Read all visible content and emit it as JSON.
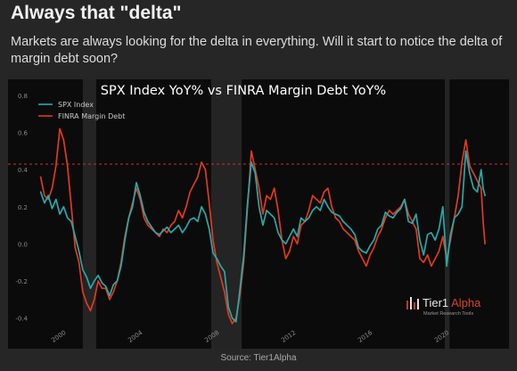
{
  "header": {
    "title": "Always that \"delta\"",
    "subtitle": "Markets are always looking for the delta in everything. Will it start to notice the delta of margin debt soon?"
  },
  "chart_data": {
    "type": "line",
    "title": "SPX Index YoY% vs FINRA Margin Debt YoY%",
    "xlabel": "",
    "ylabel": "",
    "xlim": [
      1998.6,
      2022.8
    ],
    "ylim": [
      -0.45,
      0.8
    ],
    "x_ticks": [
      "2000",
      "2004",
      "2008",
      "2012",
      "2016",
      "2020"
    ],
    "y_ticks": [
      "0.8",
      "0.6",
      "0.4",
      "0.2",
      "0.0",
      "-0.2",
      "-0.4"
    ],
    "grid": false,
    "legend_position": "top-left",
    "reference_line": 0.43,
    "recessions": [
      [
        2001.2,
        2001.9
      ],
      [
        2007.9,
        2009.5
      ],
      [
        2020.1,
        2020.35
      ]
    ],
    "series": [
      {
        "name": "SPX Index",
        "color": "#2aa8a8",
        "points": [
          [
            1999.0,
            0.28
          ],
          [
            1999.2,
            0.22
          ],
          [
            1999.4,
            0.26
          ],
          [
            1999.6,
            0.19
          ],
          [
            1999.8,
            0.24
          ],
          [
            2000.0,
            0.16
          ],
          [
            2000.2,
            0.2
          ],
          [
            2000.4,
            0.14
          ],
          [
            2000.6,
            0.12
          ],
          [
            2000.8,
            0.04
          ],
          [
            2001.0,
            -0.04
          ],
          [
            2001.2,
            -0.14
          ],
          [
            2001.4,
            -0.18
          ],
          [
            2001.6,
            -0.24
          ],
          [
            2001.8,
            -0.2
          ],
          [
            2002.0,
            -0.17
          ],
          [
            2002.2,
            -0.21
          ],
          [
            2002.4,
            -0.23
          ],
          [
            2002.6,
            -0.28
          ],
          [
            2002.8,
            -0.22
          ],
          [
            2003.0,
            -0.2
          ],
          [
            2003.2,
            -0.12
          ],
          [
            2003.4,
            0.02
          ],
          [
            2003.6,
            0.14
          ],
          [
            2003.8,
            0.2
          ],
          [
            2004.0,
            0.33
          ],
          [
            2004.2,
            0.26
          ],
          [
            2004.4,
            0.17
          ],
          [
            2004.6,
            0.12
          ],
          [
            2004.8,
            0.09
          ],
          [
            2005.0,
            0.06
          ],
          [
            2005.2,
            0.05
          ],
          [
            2005.4,
            0.07
          ],
          [
            2005.6,
            0.09
          ],
          [
            2005.8,
            0.06
          ],
          [
            2006.0,
            0.08
          ],
          [
            2006.2,
            0.1
          ],
          [
            2006.4,
            0.06
          ],
          [
            2006.6,
            0.09
          ],
          [
            2006.8,
            0.13
          ],
          [
            2007.0,
            0.14
          ],
          [
            2007.2,
            0.12
          ],
          [
            2007.4,
            0.2
          ],
          [
            2007.6,
            0.16
          ],
          [
            2007.8,
            0.08
          ],
          [
            2008.0,
            -0.05
          ],
          [
            2008.2,
            -0.08
          ],
          [
            2008.4,
            -0.12
          ],
          [
            2008.6,
            -0.15
          ],
          [
            2008.8,
            -0.34
          ],
          [
            2009.0,
            -0.4
          ],
          [
            2009.2,
            -0.42
          ],
          [
            2009.4,
            -0.25
          ],
          [
            2009.6,
            -0.06
          ],
          [
            2009.8,
            0.22
          ],
          [
            2010.0,
            0.44
          ],
          [
            2010.2,
            0.38
          ],
          [
            2010.4,
            0.2
          ],
          [
            2010.6,
            0.1
          ],
          [
            2010.8,
            0.18
          ],
          [
            2011.0,
            0.16
          ],
          [
            2011.2,
            0.14
          ],
          [
            2011.4,
            0.06
          ],
          [
            2011.6,
            0.02
          ],
          [
            2011.8,
            0.0
          ],
          [
            2012.0,
            0.04
          ],
          [
            2012.2,
            0.08
          ],
          [
            2012.4,
            0.04
          ],
          [
            2012.6,
            0.14
          ],
          [
            2012.8,
            0.12
          ],
          [
            2013.0,
            0.14
          ],
          [
            2013.2,
            0.18
          ],
          [
            2013.4,
            0.2
          ],
          [
            2013.6,
            0.18
          ],
          [
            2013.8,
            0.24
          ],
          [
            2014.0,
            0.2
          ],
          [
            2014.2,
            0.17
          ],
          [
            2014.4,
            0.16
          ],
          [
            2014.6,
            0.15
          ],
          [
            2014.8,
            0.12
          ],
          [
            2015.0,
            0.1
          ],
          [
            2015.2,
            0.08
          ],
          [
            2015.4,
            0.05
          ],
          [
            2015.6,
            -0.02
          ],
          [
            2015.8,
            -0.04
          ],
          [
            2016.0,
            -0.05
          ],
          [
            2016.2,
            -0.01
          ],
          [
            2016.4,
            0.02
          ],
          [
            2016.6,
            0.08
          ],
          [
            2016.8,
            0.1
          ],
          [
            2017.0,
            0.17
          ],
          [
            2017.2,
            0.15
          ],
          [
            2017.4,
            0.14
          ],
          [
            2017.6,
            0.17
          ],
          [
            2017.8,
            0.19
          ],
          [
            2018.0,
            0.24
          ],
          [
            2018.2,
            0.12
          ],
          [
            2018.4,
            0.11
          ],
          [
            2018.6,
            0.16
          ],
          [
            2018.8,
            0.02
          ],
          [
            2019.0,
            -0.06
          ],
          [
            2019.2,
            0.05
          ],
          [
            2019.4,
            0.06
          ],
          [
            2019.6,
            0.02
          ],
          [
            2019.8,
            0.08
          ],
          [
            2020.0,
            0.2
          ],
          [
            2020.2,
            -0.12
          ],
          [
            2020.4,
            0.05
          ],
          [
            2020.6,
            0.14
          ],
          [
            2020.8,
            0.16
          ],
          [
            2021.0,
            0.2
          ],
          [
            2021.2,
            0.5
          ],
          [
            2021.4,
            0.38
          ],
          [
            2021.6,
            0.3
          ],
          [
            2021.8,
            0.28
          ],
          [
            2022.0,
            0.4
          ],
          [
            2022.1,
            0.3
          ],
          [
            2022.2,
            0.26
          ]
        ]
      },
      {
        "name": "FINRA Margin Debt",
        "color": "#e03a1e",
        "points": [
          [
            1999.0,
            0.36
          ],
          [
            1999.2,
            0.26
          ],
          [
            1999.4,
            0.24
          ],
          [
            1999.6,
            0.3
          ],
          [
            1999.8,
            0.42
          ],
          [
            2000.0,
            0.62
          ],
          [
            2000.2,
            0.56
          ],
          [
            2000.4,
            0.42
          ],
          [
            2000.6,
            0.2
          ],
          [
            2000.8,
            -0.02
          ],
          [
            2001.0,
            -0.1
          ],
          [
            2001.2,
            -0.26
          ],
          [
            2001.4,
            -0.32
          ],
          [
            2001.6,
            -0.36
          ],
          [
            2001.8,
            -0.3
          ],
          [
            2002.0,
            -0.2
          ],
          [
            2002.2,
            -0.24
          ],
          [
            2002.4,
            -0.24
          ],
          [
            2002.6,
            -0.3
          ],
          [
            2002.8,
            -0.26
          ],
          [
            2003.0,
            -0.2
          ],
          [
            2003.2,
            -0.1
          ],
          [
            2003.4,
            0.04
          ],
          [
            2003.6,
            0.14
          ],
          [
            2003.8,
            0.22
          ],
          [
            2004.0,
            0.3
          ],
          [
            2004.2,
            0.24
          ],
          [
            2004.4,
            0.14
          ],
          [
            2004.6,
            0.1
          ],
          [
            2004.8,
            0.08
          ],
          [
            2005.0,
            0.06
          ],
          [
            2005.2,
            0.04
          ],
          [
            2005.4,
            0.08
          ],
          [
            2005.6,
            0.06
          ],
          [
            2005.8,
            0.1
          ],
          [
            2006.0,
            0.12
          ],
          [
            2006.2,
            0.18
          ],
          [
            2006.4,
            0.14
          ],
          [
            2006.6,
            0.2
          ],
          [
            2006.8,
            0.28
          ],
          [
            2007.0,
            0.32
          ],
          [
            2007.2,
            0.36
          ],
          [
            2007.4,
            0.44
          ],
          [
            2007.6,
            0.4
          ],
          [
            2007.8,
            0.22
          ],
          [
            2008.0,
            0.02
          ],
          [
            2008.2,
            -0.1
          ],
          [
            2008.4,
            -0.18
          ],
          [
            2008.6,
            -0.26
          ],
          [
            2008.8,
            -0.38
          ],
          [
            2009.0,
            -0.43
          ],
          [
            2009.2,
            -0.4
          ],
          [
            2009.4,
            -0.28
          ],
          [
            2009.6,
            -0.1
          ],
          [
            2009.8,
            0.2
          ],
          [
            2010.0,
            0.5
          ],
          [
            2010.2,
            0.4
          ],
          [
            2010.4,
            0.3
          ],
          [
            2010.6,
            0.16
          ],
          [
            2010.8,
            0.26
          ],
          [
            2011.0,
            0.24
          ],
          [
            2011.2,
            0.3
          ],
          [
            2011.4,
            0.18
          ],
          [
            2011.6,
            0.02
          ],
          [
            2011.8,
            -0.08
          ],
          [
            2012.0,
            -0.04
          ],
          [
            2012.2,
            0.04
          ],
          [
            2012.4,
            0.0
          ],
          [
            2012.6,
            0.1
          ],
          [
            2012.8,
            0.12
          ],
          [
            2013.0,
            0.18
          ],
          [
            2013.2,
            0.26
          ],
          [
            2013.4,
            0.24
          ],
          [
            2013.6,
            0.22
          ],
          [
            2013.8,
            0.28
          ],
          [
            2014.0,
            0.3
          ],
          [
            2014.2,
            0.2
          ],
          [
            2014.4,
            0.14
          ],
          [
            2014.6,
            0.12
          ],
          [
            2014.8,
            0.08
          ],
          [
            2015.0,
            0.06
          ],
          [
            2015.2,
            0.04
          ],
          [
            2015.4,
            0.02
          ],
          [
            2015.6,
            -0.04
          ],
          [
            2015.8,
            -0.08
          ],
          [
            2016.0,
            -0.12
          ],
          [
            2016.2,
            -0.06
          ],
          [
            2016.4,
            -0.02
          ],
          [
            2016.6,
            0.04
          ],
          [
            2016.8,
            0.08
          ],
          [
            2017.0,
            0.14
          ],
          [
            2017.2,
            0.18
          ],
          [
            2017.4,
            0.16
          ],
          [
            2017.6,
            0.18
          ],
          [
            2017.8,
            0.2
          ],
          [
            2018.0,
            0.24
          ],
          [
            2018.2,
            0.16
          ],
          [
            2018.4,
            0.12
          ],
          [
            2018.6,
            0.08
          ],
          [
            2018.8,
            -0.08
          ],
          [
            2019.0,
            -0.1
          ],
          [
            2019.2,
            -0.06
          ],
          [
            2019.4,
            -0.12
          ],
          [
            2019.6,
            -0.08
          ],
          [
            2019.8,
            -0.04
          ],
          [
            2020.0,
            0.04
          ],
          [
            2020.2,
            -0.08
          ],
          [
            2020.4,
            0.02
          ],
          [
            2020.6,
            0.14
          ],
          [
            2020.8,
            0.26
          ],
          [
            2021.0,
            0.44
          ],
          [
            2021.2,
            0.56
          ],
          [
            2021.4,
            0.42
          ],
          [
            2021.6,
            0.38
          ],
          [
            2021.8,
            0.34
          ],
          [
            2022.0,
            0.3
          ],
          [
            2022.1,
            0.12
          ],
          [
            2022.2,
            0.0
          ]
        ]
      }
    ]
  },
  "watermark": {
    "brand_main": "Tier1",
    "brand_accent": "Alpha",
    "tagline": "Market Research Tools"
  },
  "footer": {
    "source": "Source: Tier1Alpha"
  }
}
